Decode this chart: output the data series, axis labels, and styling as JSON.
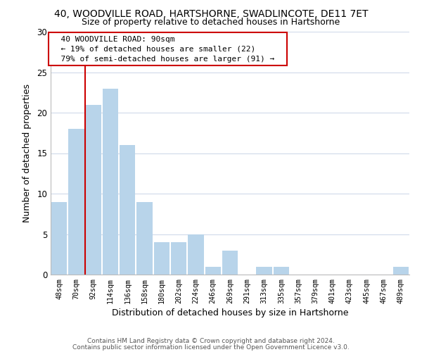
{
  "title1": "40, WOODVILLE ROAD, HARTSHORNE, SWADLINCOTE, DE11 7ET",
  "title2": "Size of property relative to detached houses in Hartshorne",
  "xlabel": "Distribution of detached houses by size in Hartshorne",
  "ylabel": "Number of detached properties",
  "footer1": "Contains HM Land Registry data © Crown copyright and database right 2024.",
  "footer2": "Contains public sector information licensed under the Open Government Licence v3.0.",
  "bar_labels": [
    "48sqm",
    "70sqm",
    "92sqm",
    "114sqm",
    "136sqm",
    "158sqm",
    "180sqm",
    "202sqm",
    "224sqm",
    "246sqm",
    "269sqm",
    "291sqm",
    "313sqm",
    "335sqm",
    "357sqm",
    "379sqm",
    "401sqm",
    "423sqm",
    "445sqm",
    "467sqm",
    "489sqm"
  ],
  "bar_values": [
    9,
    18,
    21,
    23,
    16,
    9,
    4,
    4,
    5,
    1,
    3,
    0,
    1,
    1,
    0,
    0,
    0,
    0,
    0,
    0,
    1
  ],
  "bar_color": "#b8d4ea",
  "highlight_color": "#cc0000",
  "highlight_index": 2,
  "ylim": [
    0,
    30
  ],
  "yticks": [
    0,
    5,
    10,
    15,
    20,
    25,
    30
  ],
  "annotation_title": "40 WOODVILLE ROAD: 90sqm",
  "annotation_line1": "← 19% of detached houses are smaller (22)",
  "annotation_line2": "79% of semi-detached houses are larger (91) →",
  "box_color": "#cc0000",
  "background_color": "#ffffff",
  "grid_color": "#d0daea"
}
